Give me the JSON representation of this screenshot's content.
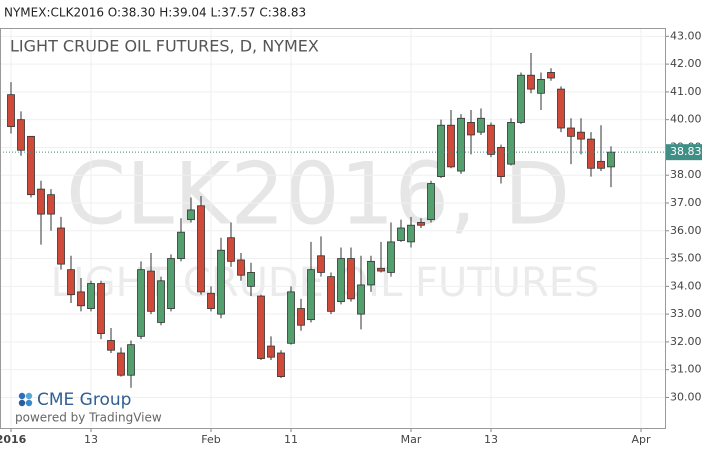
{
  "chart_data": {
    "type": "candlestick",
    "header": "NYMEX:CLK2016 O:38.30 H:39.04 L:37.57 C:38.83",
    "title": "LIGHT CRUDE OIL FUTURES, D, NYMEX",
    "watermark": [
      "CLK2016, D",
      "LIGHT CRUDE OIL FUTURES"
    ],
    "logo": "CME Group",
    "credit": "powered by TradingView",
    "categories": [
      "2016",
      null,
      null,
      null,
      null,
      null,
      null,
      null,
      "13",
      null,
      null,
      null,
      null,
      null,
      null,
      null,
      null,
      null,
      null,
      null,
      "Feb",
      null,
      null,
      null,
      null,
      null,
      null,
      null,
      "11",
      null,
      null,
      null,
      null,
      null,
      null,
      null,
      null,
      null,
      null,
      null,
      "Mar",
      null,
      null,
      null,
      null,
      null,
      null,
      null,
      "13",
      null,
      null,
      null,
      null,
      null,
      null,
      null,
      null,
      null,
      null,
      null,
      null,
      null,
      null,
      "Apr"
    ],
    "open": [
      40.9,
      40.0,
      39.4,
      37.5,
      37.3,
      36.1,
      34.6,
      33.8,
      33.2,
      34.1,
      32.05,
      31.6,
      30.8,
      32.2,
      34.55,
      32.7,
      33.2,
      35.0,
      36.4,
      36.9,
      33.75,
      33.0,
      35.75,
      34.95,
      34.0,
      33.65,
      31.85,
      31.6,
      31.95,
      33.2,
      32.8,
      35.1,
      34.35,
      33.45,
      35.0,
      33.0,
      34.05,
      34.65,
      34.5,
      35.65,
      35.6,
      36.3,
      36.4,
      37.95,
      39.8,
      38.15,
      39.9,
      39.55,
      39.8,
      39.0,
      38.4,
      39.9,
      41.6,
      40.95,
      41.7,
      41.1,
      39.7,
      39.55,
      39.3,
      38.5,
      38.3,
      null,
      null,
      null
    ],
    "high": [
      41.35,
      40.3,
      39.4,
      37.8,
      37.5,
      36.5,
      35.1,
      34.3,
      34.2,
      34.2,
      32.5,
      31.8,
      32.05,
      34.9,
      35.2,
      34.35,
      35.15,
      36.45,
      37.2,
      37.25,
      34.0,
      35.75,
      36.3,
      35.2,
      34.85,
      33.7,
      32.2,
      31.7,
      34.0,
      33.55,
      35.6,
      35.8,
      34.5,
      35.4,
      35.4,
      35.1,
      35.1,
      35.6,
      36.3,
      36.4,
      36.5,
      36.45,
      37.8,
      40.0,
      40.35,
      40.2,
      40.35,
      40.4,
      39.9,
      39.1,
      40.05,
      41.7,
      42.4,
      41.7,
      41.85,
      41.2,
      40.05,
      40.05,
      39.55,
      39.8,
      39.04,
      null,
      null,
      null
    ],
    "low": [
      39.5,
      38.7,
      37.2,
      35.5,
      36.0,
      34.6,
      33.4,
      33.1,
      33.1,
      32.1,
      31.6,
      30.75,
      30.35,
      32.1,
      33.0,
      32.6,
      33.1,
      34.9,
      36.3,
      33.7,
      33.1,
      32.85,
      34.7,
      34.2,
      33.65,
      31.35,
      31.35,
      30.7,
      31.9,
      32.4,
      32.7,
      34.35,
      33.0,
      33.35,
      33.45,
      32.45,
      33.8,
      34.5,
      34.35,
      35.6,
      35.4,
      36.1,
      36.3,
      37.9,
      38.25,
      38.05,
      38.75,
      39.45,
      38.65,
      37.7,
      38.35,
      39.85,
      40.95,
      40.35,
      41.4,
      39.55,
      38.4,
      38.75,
      37.95,
      38.15,
      37.57,
      null,
      null,
      null
    ],
    "close": [
      39.75,
      38.9,
      37.3,
      36.6,
      36.6,
      34.8,
      33.7,
      33.3,
      34.1,
      32.3,
      31.7,
      30.8,
      31.9,
      34.6,
      33.1,
      34.2,
      35.0,
      35.95,
      36.75,
      33.8,
      33.2,
      35.3,
      34.9,
      34.4,
      34.5,
      31.4,
      31.45,
      30.75,
      33.8,
      32.6,
      34.6,
      34.5,
      33.1,
      35.0,
      33.55,
      34.05,
      34.9,
      34.55,
      35.6,
      36.1,
      36.2,
      36.2,
      37.7,
      39.8,
      38.3,
      40.05,
      39.45,
      40.05,
      38.75,
      37.95,
      39.9,
      41.6,
      41.1,
      41.45,
      41.5,
      39.7,
      39.4,
      39.3,
      38.25,
      38.25,
      38.83,
      null,
      null,
      null
    ],
    "up_color": "#53a06e",
    "down_color": "#d04a3a",
    "last_price": 38.83,
    "last_price_color": "#3f8f86",
    "ylim": [
      28.9,
      43.3
    ],
    "yticks": [
      {
        "value": 30,
        "label": "30.00"
      },
      {
        "value": 31,
        "label": "31.00"
      },
      {
        "value": 32,
        "label": "32.00"
      },
      {
        "value": 33,
        "label": "33.00"
      },
      {
        "value": 34,
        "label": "34.00"
      },
      {
        "value": 35,
        "label": "35.00"
      },
      {
        "value": 36,
        "label": "36.00"
      },
      {
        "value": 37,
        "label": "37.00"
      },
      {
        "value": 38,
        "label": "38.00"
      },
      {
        "value": 39,
        "label": "39.00"
      },
      {
        "value": 40,
        "label": "40.00"
      },
      {
        "value": 41,
        "label": "41.00"
      },
      {
        "value": 42,
        "label": "42.00"
      },
      {
        "value": 43,
        "label": "43.00"
      }
    ],
    "grid": true
  }
}
